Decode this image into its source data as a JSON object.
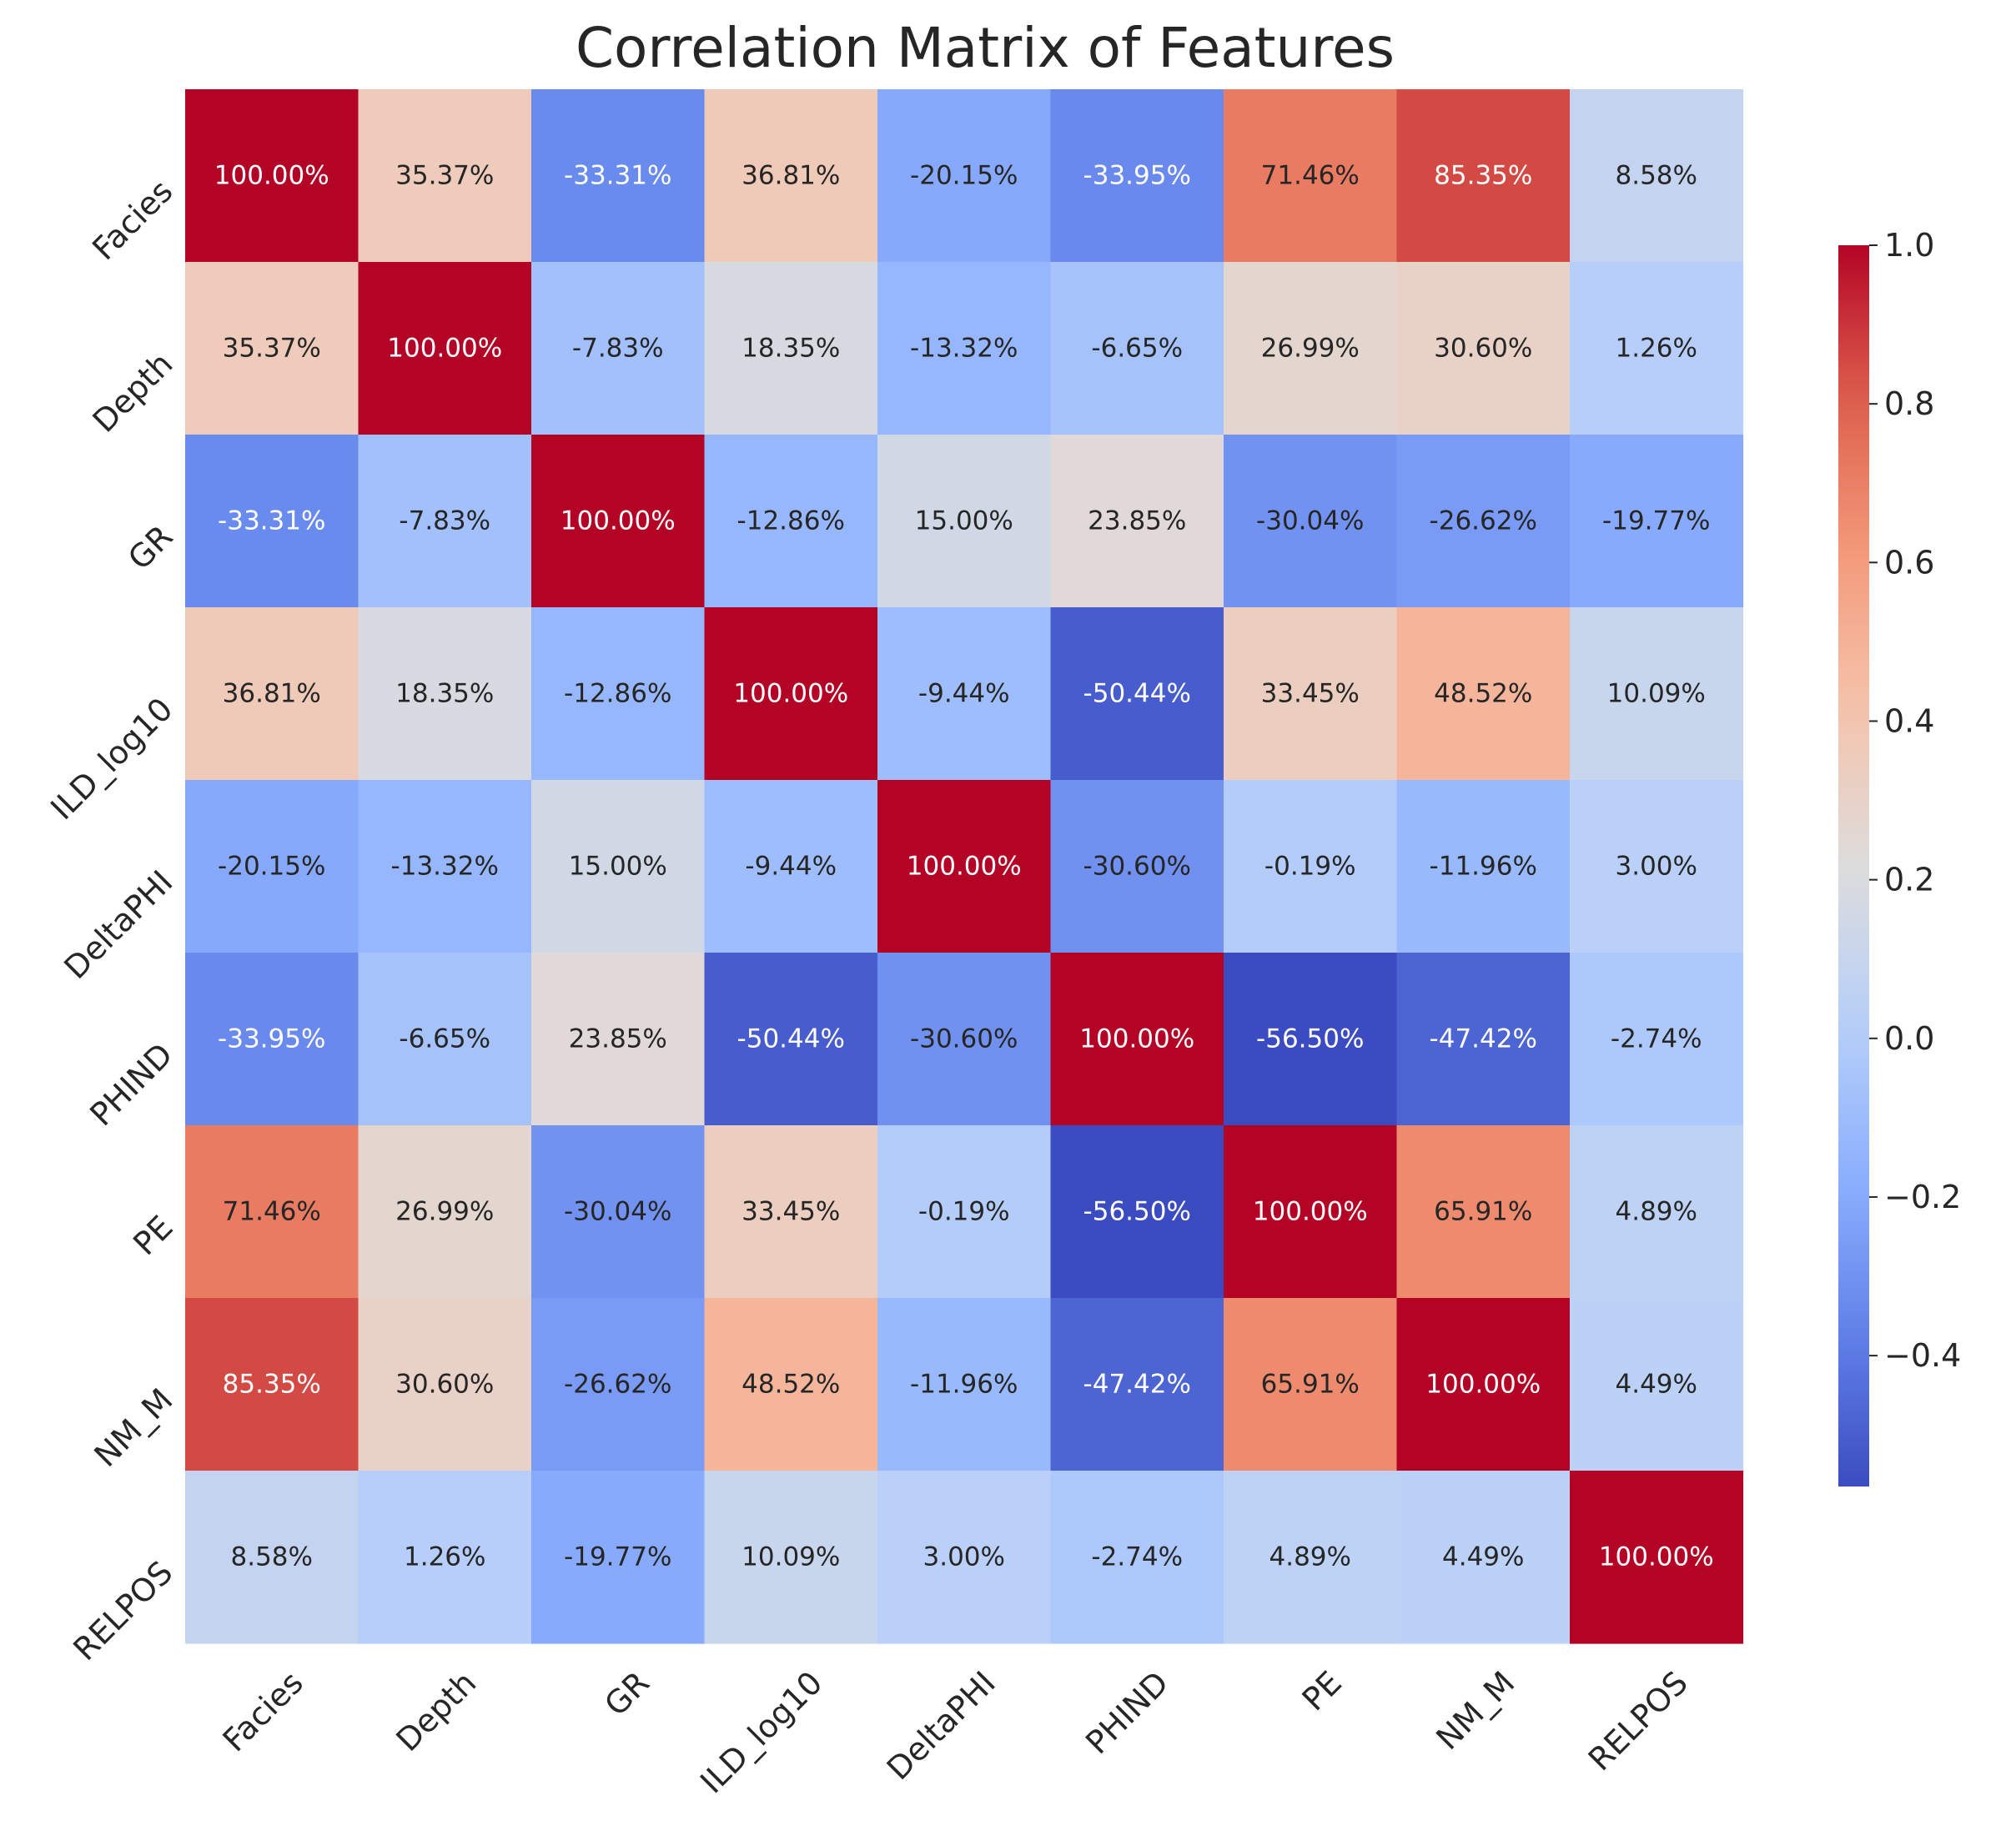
{
  "chart_data": {
    "type": "heatmap",
    "title": "Correlation Matrix of Features",
    "xlabel": "",
    "ylabel": "",
    "labels": [
      "Facies",
      "Depth",
      "GR",
      "ILD_log10",
      "DeltaPHI",
      "PHIND",
      "PE",
      "NM_M",
      "RELPOS"
    ],
    "values": [
      [
        1.0,
        0.3537,
        -0.3331,
        0.3681,
        -0.2015,
        -0.3395,
        0.7146,
        0.8535,
        0.0858
      ],
      [
        0.3537,
        1.0,
        -0.0783,
        0.1835,
        -0.1332,
        -0.0665,
        0.2699,
        0.306,
        0.0126
      ],
      [
        -0.3331,
        -0.0783,
        1.0,
        -0.1286,
        0.15,
        0.2385,
        -0.3004,
        -0.2662,
        -0.1977
      ],
      [
        0.3681,
        0.1835,
        -0.1286,
        1.0,
        -0.0944,
        -0.5044,
        0.3345,
        0.4852,
        0.1009
      ],
      [
        -0.2015,
        -0.1332,
        0.15,
        -0.0944,
        1.0,
        -0.306,
        -0.0019,
        -0.1196,
        0.03
      ],
      [
        -0.3395,
        -0.0665,
        0.2385,
        -0.5044,
        -0.306,
        1.0,
        -0.565,
        -0.4742,
        -0.0274
      ],
      [
        0.7146,
        0.2699,
        -0.3004,
        0.3345,
        -0.0019,
        -0.565,
        1.0,
        0.6591,
        0.0489
      ],
      [
        0.8535,
        0.306,
        -0.2662,
        0.4852,
        -0.1196,
        -0.4742,
        0.6591,
        1.0,
        0.0449
      ],
      [
        0.0858,
        0.0126,
        -0.1977,
        0.1009,
        0.03,
        -0.0274,
        0.0489,
        0.0449,
        1.0
      ]
    ],
    "annotations": [
      [
        "100.00%",
        "35.37%",
        "-33.31%",
        "36.81%",
        "-20.15%",
        "-33.95%",
        "71.46%",
        "85.35%",
        "8.58%"
      ],
      [
        "35.37%",
        "100.00%",
        "-7.83%",
        "18.35%",
        "-13.32%",
        "-6.65%",
        "26.99%",
        "30.60%",
        "1.26%"
      ],
      [
        "-33.31%",
        "-7.83%",
        "100.00%",
        "-12.86%",
        "15.00%",
        "23.85%",
        "-30.04%",
        "-26.62%",
        "-19.77%"
      ],
      [
        "36.81%",
        "18.35%",
        "-12.86%",
        "100.00%",
        "-9.44%",
        "-50.44%",
        "33.45%",
        "48.52%",
        "10.09%"
      ],
      [
        "-20.15%",
        "-13.32%",
        "15.00%",
        "-9.44%",
        "100.00%",
        "-30.60%",
        "-0.19%",
        "-11.96%",
        "3.00%"
      ],
      [
        "-33.95%",
        "-6.65%",
        "23.85%",
        "-50.44%",
        "-30.60%",
        "100.00%",
        "-56.50%",
        "-47.42%",
        "-2.74%"
      ],
      [
        "71.46%",
        "26.99%",
        "-30.04%",
        "33.45%",
        "-0.19%",
        "-56.50%",
        "100.00%",
        "65.91%",
        "4.89%"
      ],
      [
        "85.35%",
        "30.60%",
        "-26.62%",
        "48.52%",
        "-11.96%",
        "-47.42%",
        "65.91%",
        "100.00%",
        "4.49%"
      ],
      [
        "8.58%",
        "1.26%",
        "-19.77%",
        "10.09%",
        "3.00%",
        "-2.74%",
        "4.89%",
        "4.49%",
        "100.00%"
      ]
    ],
    "colormap": "coolwarm",
    "vmin": -0.565,
    "vmax": 1.0,
    "colorbar": {
      "ticks": [
        1.0,
        0.8,
        0.6,
        0.4,
        0.2,
        0.0,
        -0.2,
        -0.4
      ],
      "tick_labels": [
        "1.0",
        "0.8",
        "0.6",
        "0.4",
        "0.2",
        "0.0",
        "−0.2",
        "−0.4"
      ],
      "position": "right"
    },
    "grid": false
  },
  "colors": {
    "low": "#3b4cc0",
    "mid": "#dddcdc",
    "high": "#b40426",
    "text_dark": "#262626",
    "text_light": "#ffffff"
  }
}
